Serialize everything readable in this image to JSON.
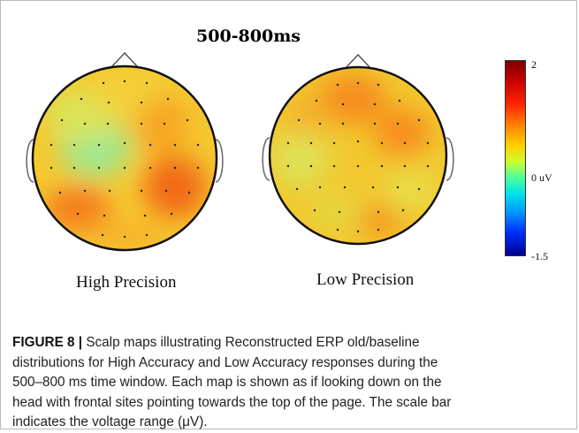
{
  "figure": {
    "title": "500-800ms",
    "maps": [
      {
        "label": "High Precision"
      },
      {
        "label": "Low Precision"
      }
    ],
    "colorbar": {
      "max_label": "2",
      "mid_label": "0 uV",
      "min_label": "-1.5",
      "colors": [
        "#7a0000",
        "#ff2400",
        "#ff8a00",
        "#ffd200",
        "#4fff9a",
        "#00e4e8",
        "#0030ff",
        "#000090"
      ]
    }
  },
  "caption": {
    "label": "FIGURE 8 | ",
    "lines": [
      "Scalp maps illustrating Reconstructed ERP old/baseline",
      "distributions for High Accuracy and Low Accuracy responses during the",
      "500–800 ms time window. Each map is shown as if looking down on the",
      "head with frontal sites pointing towards the top of the page. The scale bar",
      "indicates the voltage range (μV)."
    ]
  }
}
